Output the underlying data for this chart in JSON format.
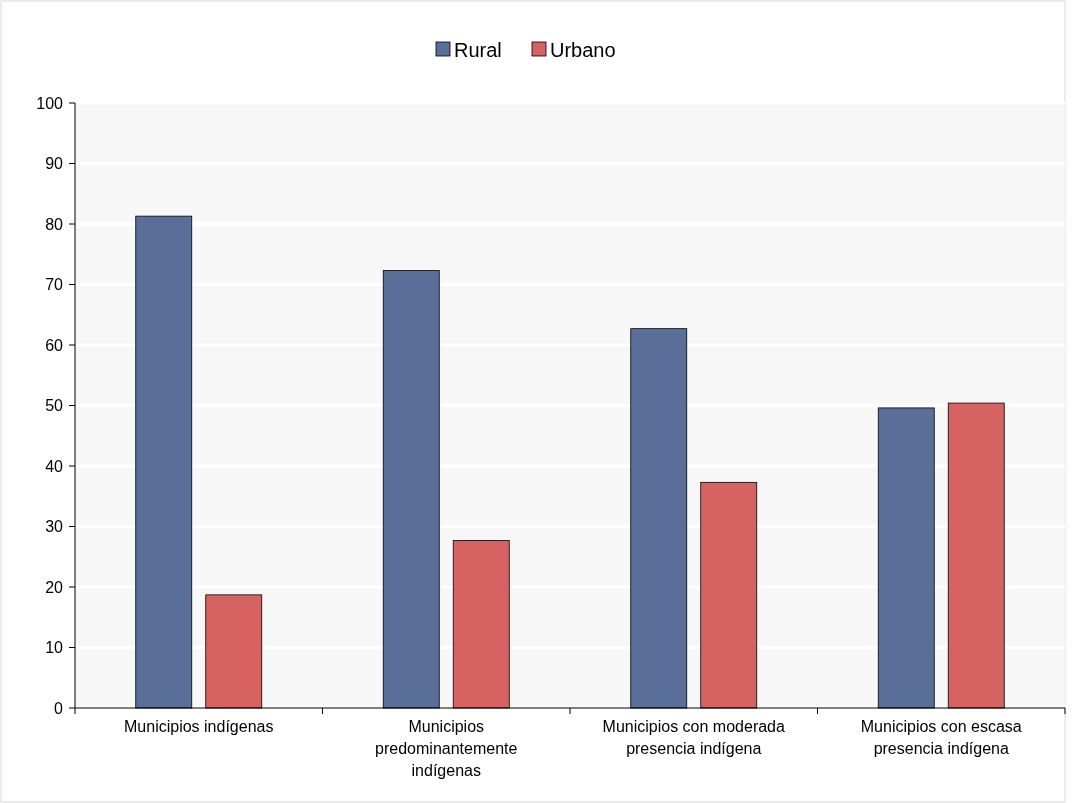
{
  "chart_data": {
    "type": "bar",
    "categories": [
      "Municipios indígenas",
      "Municipios predominantemente indígenas",
      "Municipios con moderada presencia indígena",
      "Municipios con escasa presencia indígena"
    ],
    "series": [
      {
        "name": "Rural",
        "color": "#5a6e9a",
        "values": [
          81.3,
          72.3,
          62.7,
          49.6
        ]
      },
      {
        "name": "Urbano",
        "color": "#d66262",
        "values": [
          18.7,
          27.7,
          37.3,
          50.4
        ]
      }
    ],
    "ylim": [
      0,
      100
    ],
    "yticks": [
      0,
      10,
      20,
      30,
      40,
      50,
      60,
      70,
      80,
      90,
      100
    ],
    "grid": "y",
    "legend": "top"
  }
}
